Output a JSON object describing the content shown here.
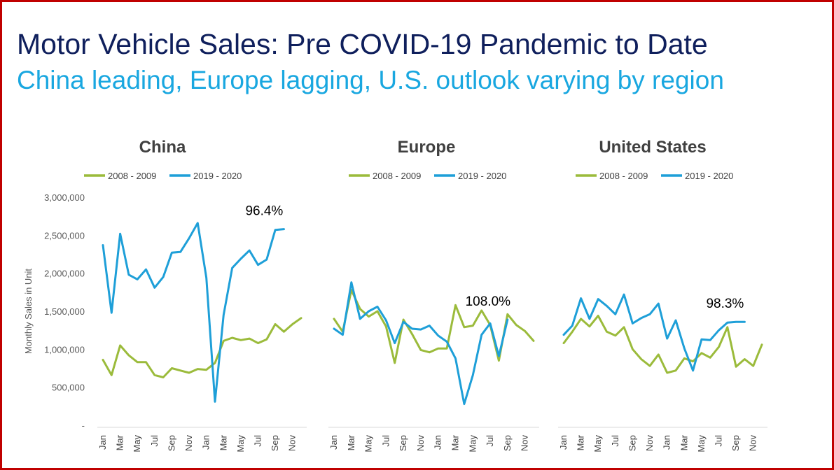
{
  "header": {
    "title": "Motor Vehicle Sales: Pre COVID-19 Pandemic to Date",
    "subtitle": "China leading, Europe lagging, U.S. outlook varying by region"
  },
  "colors": {
    "border": "#c00000",
    "title": "#0f1f5c",
    "subtitle": "#19a7e0",
    "series_2008": "#9bbb3b",
    "series_2019": "#1e9fd8"
  },
  "chart_data": [
    {
      "type": "line",
      "title": "China",
      "ylabel": "Monthly Sales in Unit",
      "ylim": [
        0,
        3000000
      ],
      "yticks": [
        0,
        500000,
        1000000,
        1500000,
        2000000,
        2500000,
        3000000
      ],
      "ytick_labels": [
        "-",
        "500,000",
        "1,000,000",
        "1,500,000",
        "2,000,000",
        "2,500,000",
        "3,000,000"
      ],
      "x_tick_labels": [
        "Jan",
        "Mar",
        "May",
        "Jul",
        "Sep",
        "Nov",
        "Jan",
        "Mar",
        "May",
        "Jul",
        "Sep",
        "Nov"
      ],
      "annotation": "96.4%",
      "series": [
        {
          "name": "2008 - 2009",
          "values": [
            860000,
            660000,
            1050000,
            920000,
            830000,
            830000,
            660000,
            630000,
            750000,
            720000,
            690000,
            740000,
            730000,
            820000,
            1110000,
            1150000,
            1120000,
            1140000,
            1080000,
            1130000,
            1330000,
            1230000,
            1330000,
            1410000
          ]
        },
        {
          "name": "2019 - 2020",
          "values": [
            2370000,
            1480000,
            2520000,
            1980000,
            1920000,
            2050000,
            1810000,
            1950000,
            2270000,
            2280000,
            2460000,
            2660000,
            1940000,
            310000,
            1450000,
            2070000,
            2190000,
            2300000,
            2110000,
            2180000,
            2570000,
            2580000
          ]
        }
      ]
    },
    {
      "type": "line",
      "title": "Europe",
      "ylim": [
        0,
        3000000
      ],
      "x_tick_labels": [
        "Jan",
        "Mar",
        "May",
        "Jul",
        "Sep",
        "Nov",
        "Jan",
        "Mar",
        "May",
        "Jul",
        "Sep",
        "Nov"
      ],
      "annotation": "108.0%",
      "series": [
        {
          "name": "2008 - 2009",
          "values": [
            1400000,
            1230000,
            1780000,
            1530000,
            1430000,
            1500000,
            1300000,
            820000,
            1390000,
            1200000,
            990000,
            960000,
            1010000,
            1010000,
            1580000,
            1290000,
            1310000,
            1510000,
            1320000,
            850000,
            1460000,
            1320000,
            1240000,
            1110000
          ]
        },
        {
          "name": "2019 - 2020",
          "values": [
            1270000,
            1190000,
            1880000,
            1400000,
            1500000,
            1560000,
            1380000,
            1080000,
            1360000,
            1270000,
            1260000,
            1310000,
            1180000,
            1100000,
            880000,
            280000,
            660000,
            1190000,
            1340000,
            910000,
            1390000
          ]
        }
      ]
    },
    {
      "type": "line",
      "title": "United States",
      "ylim": [
        0,
        3000000
      ],
      "x_tick_labels": [
        "Jan",
        "Mar",
        "May",
        "Jul",
        "Sep",
        "Nov",
        "Jan",
        "Mar",
        "May",
        "Jul",
        "Sep",
        "Nov"
      ],
      "annotation": "98.3%",
      "series": [
        {
          "name": "2008 - 2009",
          "values": [
            1080000,
            1230000,
            1400000,
            1300000,
            1440000,
            1230000,
            1180000,
            1290000,
            1000000,
            870000,
            780000,
            930000,
            690000,
            720000,
            880000,
            840000,
            950000,
            890000,
            1030000,
            1290000,
            770000,
            870000,
            780000,
            1060000
          ]
        },
        {
          "name": "2019 - 2020",
          "values": [
            1190000,
            1310000,
            1670000,
            1400000,
            1660000,
            1570000,
            1460000,
            1720000,
            1340000,
            1410000,
            1460000,
            1600000,
            1140000,
            1380000,
            1010000,
            720000,
            1130000,
            1120000,
            1250000,
            1350000,
            1360000,
            1360000
          ]
        }
      ]
    }
  ]
}
